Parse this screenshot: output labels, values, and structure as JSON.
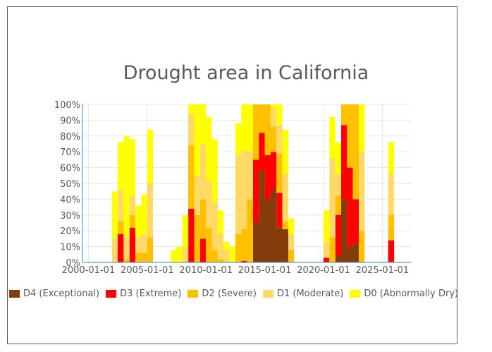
{
  "chart_data": {
    "type": "area",
    "stacking": "percent",
    "title": "Drought area in California",
    "xlabel": "",
    "ylabel": "",
    "x_axis": {
      "type": "date",
      "range": [
        "2000-01-01",
        "2026-12-31"
      ],
      "tick_labels": [
        "2000-01-01",
        "2005-01-01",
        "2010-01-01",
        "2015-01-01",
        "2020-01-01",
        "2025-01-01"
      ]
    },
    "y_axis": {
      "range": [
        0,
        100
      ],
      "tick_labels": [
        "0%",
        "10%",
        "20%",
        "30%",
        "40%",
        "50%",
        "60%",
        "70%",
        "80%",
        "90%",
        "100%"
      ]
    },
    "grid": true,
    "legend_position": "bottom",
    "x": [
      "2000-01",
      "2000-07",
      "2001-01",
      "2001-07",
      "2002-01",
      "2002-07",
      "2003-01",
      "2003-07",
      "2004-01",
      "2004-07",
      "2005-01",
      "2005-07",
      "2006-01",
      "2006-07",
      "2007-01",
      "2007-07",
      "2008-01",
      "2008-07",
      "2009-01",
      "2009-07",
      "2010-01",
      "2010-07",
      "2011-01",
      "2011-07",
      "2012-01",
      "2012-07",
      "2013-01",
      "2013-07",
      "2014-01",
      "2014-07",
      "2015-01",
      "2015-07",
      "2016-01",
      "2016-07",
      "2017-01",
      "2017-07",
      "2018-01",
      "2018-07",
      "2019-01",
      "2019-07",
      "2020-01",
      "2020-07",
      "2021-01",
      "2021-07",
      "2022-01",
      "2022-07",
      "2023-01",
      "2023-07",
      "2024-01",
      "2024-07",
      "2025-01",
      "2025-07",
      "2026-01"
    ],
    "series": [
      {
        "name": "D4 (Exceptional)",
        "color": "#843c0c",
        "values": [
          0,
          0,
          0,
          0,
          0,
          0,
          0,
          0,
          0,
          0,
          0,
          0,
          0,
          0,
          0,
          0,
          0,
          0,
          0,
          0,
          0,
          0,
          0,
          0,
          0,
          0,
          0,
          0,
          25,
          58,
          40,
          46,
          22,
          21,
          0,
          0,
          0,
          0,
          0,
          0,
          0,
          0,
          4,
          40,
          10,
          12,
          0,
          0,
          0,
          0,
          0,
          0,
          0
        ]
      },
      {
        "name": "D3 (Extreme)",
        "color": "#ff0000",
        "values": [
          0,
          0,
          0,
          0,
          0,
          18,
          0,
          22,
          0,
          0,
          0,
          0,
          0,
          0,
          0,
          0,
          0,
          34,
          0,
          15,
          0,
          0,
          0,
          0,
          0,
          0,
          1,
          0,
          40,
          24,
          28,
          24,
          22,
          0,
          0,
          0,
          0,
          0,
          0,
          0,
          3,
          0,
          26,
          47,
          50,
          28,
          0,
          0,
          0,
          0,
          0,
          14,
          0
        ]
      },
      {
        "name": "D2 (Severe)",
        "color": "#ffc000",
        "values": [
          0,
          0,
          0,
          0,
          0,
          8,
          2,
          8,
          6,
          6,
          16,
          0,
          0,
          0,
          0,
          0,
          0,
          40,
          30,
          25,
          22,
          8,
          2,
          0,
          0,
          18,
          20,
          40,
          35,
          18,
          32,
          16,
          25,
          5,
          8,
          0,
          0,
          0,
          0,
          0,
          0,
          16,
          12,
          13,
          40,
          60,
          20,
          0,
          0,
          0,
          0,
          16,
          0
        ]
      },
      {
        "name": "D1 (Moderate)",
        "color": "#ffd966",
        "values": [
          0,
          0,
          0,
          0,
          15,
          20,
          14,
          12,
          10,
          12,
          34,
          0,
          0,
          0,
          0,
          0,
          10,
          20,
          25,
          35,
          30,
          30,
          16,
          8,
          0,
          50,
          50,
          30,
          0,
          0,
          0,
          12,
          18,
          30,
          10,
          0,
          0,
          0,
          0,
          0,
          10,
          50,
          14,
          0,
          0,
          0,
          50,
          0,
          0,
          0,
          0,
          26,
          0
        ]
      },
      {
        "name": "D0 (Abnormally Dry)",
        "color": "#ffff00",
        "values": [
          0,
          0,
          0,
          0,
          30,
          30,
          64,
          36,
          20,
          25,
          34,
          0,
          0,
          0,
          8,
          10,
          20,
          6,
          45,
          25,
          40,
          40,
          15,
          5,
          10,
          20,
          29,
          30,
          0,
          0,
          0,
          2,
          13,
          28,
          10,
          0,
          0,
          0,
          0,
          0,
          20,
          26,
          20,
          0,
          0,
          0,
          30,
          0,
          0,
          0,
          0,
          20,
          0
        ]
      }
    ]
  }
}
